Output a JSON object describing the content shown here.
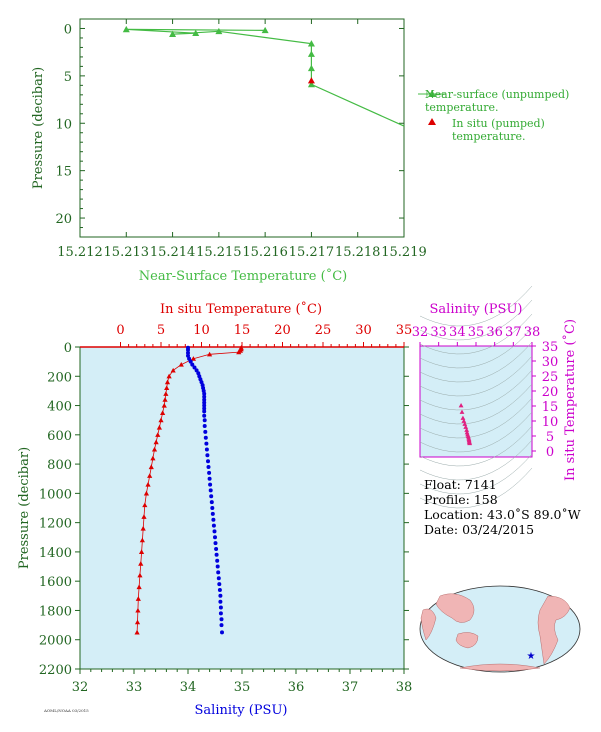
{
  "colors": {
    "near_surface": "#44bb44",
    "temperature": "#dd0000",
    "salinity": "#0000dd",
    "sal_label": "#cc00cc",
    "axes_green": "#226622",
    "bg_panel": "#d4eef7",
    "land": "#f0b5b5",
    "ocean": "#d4eef7"
  },
  "chart_data": [
    {
      "type": "line",
      "id": "near_surface",
      "xlabel": "Near-Surface Temperature (˚C)",
      "ylabel": "Pressure (decibar)",
      "xlim": [
        15.212,
        15.219
      ],
      "ylim": [
        22,
        -1
      ],
      "xticks": [
        "15.212",
        "15.213",
        "15.214",
        "15.215",
        "15.216",
        "15.217",
        "15.218",
        "15.219"
      ],
      "yticks": [
        "0",
        "5",
        "10",
        "15",
        "20"
      ],
      "series": [
        {
          "name": "Near-surface (unpumped) temperature.",
          "marker": "triangle",
          "points": [
            [
              15.216,
              0.2
            ],
            [
              15.213,
              0.1
            ],
            [
              15.2145,
              0.5
            ],
            [
              15.214,
              0.6
            ],
            [
              15.215,
              0.3
            ],
            [
              15.217,
              1.6
            ],
            [
              15.217,
              2.7
            ],
            [
              15.217,
              4.2
            ],
            [
              15.217,
              5.9
            ],
            [
              15.219,
              10.3
            ]
          ]
        },
        {
          "name": "In situ (pumped) temperature.",
          "marker": "triangle",
          "points": [
            [
              15.217,
              5.5
            ]
          ]
        }
      ],
      "legend": "right"
    },
    {
      "type": "scatter",
      "id": "profile",
      "xlabel_top": "In situ Temperature (˚C)",
      "xlabel_bottom": "Salinity (PSU)",
      "ylabel": "Pressure (decibar)",
      "temp_lim": [
        -5,
        35
      ],
      "sal_lim": [
        32,
        38
      ],
      "ylim": [
        2200,
        0
      ],
      "temp_ticks": [
        "0",
        "5",
        "10",
        "15",
        "20",
        "25",
        "30",
        "35"
      ],
      "sal_ticks": [
        "32",
        "33",
        "34",
        "35",
        "36",
        "37",
        "38"
      ],
      "yticks": [
        "0",
        "200",
        "400",
        "600",
        "800",
        "1000",
        "1200",
        "1400",
        "1600",
        "1800",
        "2000",
        "2200"
      ],
      "temperature": [
        [
          14.9,
          5
        ],
        [
          14.9,
          15
        ],
        [
          14.8,
          25
        ],
        [
          14.6,
          35
        ],
        [
          11.0,
          50
        ],
        [
          9.0,
          80
        ],
        [
          7.5,
          120
        ],
        [
          6.5,
          160
        ],
        [
          6.0,
          200
        ],
        [
          5.8,
          240
        ],
        [
          5.7,
          280
        ],
        [
          5.6,
          320
        ],
        [
          5.5,
          360
        ],
        [
          5.4,
          400
        ],
        [
          5.2,
          450
        ],
        [
          5.0,
          500
        ],
        [
          4.8,
          550
        ],
        [
          4.6,
          600
        ],
        [
          4.4,
          650
        ],
        [
          4.2,
          700
        ],
        [
          4.0,
          760
        ],
        [
          3.8,
          820
        ],
        [
          3.6,
          880
        ],
        [
          3.4,
          940
        ],
        [
          3.2,
          1000
        ],
        [
          3.0,
          1080
        ],
        [
          2.9,
          1160
        ],
        [
          2.8,
          1240
        ],
        [
          2.7,
          1320
        ],
        [
          2.6,
          1400
        ],
        [
          2.5,
          1480
        ],
        [
          2.4,
          1560
        ],
        [
          2.3,
          1640
        ],
        [
          2.2,
          1720
        ],
        [
          2.15,
          1800
        ],
        [
          2.1,
          1880
        ],
        [
          2.05,
          1950
        ]
      ],
      "salinity": [
        [
          34.0,
          5
        ],
        [
          34.0,
          20
        ],
        [
          34.0,
          40
        ],
        [
          34.0,
          60
        ],
        [
          34.02,
          80
        ],
        [
          34.05,
          100
        ],
        [
          34.08,
          120
        ],
        [
          34.12,
          140
        ],
        [
          34.16,
          160
        ],
        [
          34.19,
          180
        ],
        [
          34.21,
          200
        ],
        [
          34.23,
          220
        ],
        [
          34.25,
          240
        ],
        [
          34.27,
          260
        ],
        [
          34.28,
          280
        ],
        [
          34.29,
          300
        ],
        [
          34.3,
          320
        ],
        [
          34.3,
          340
        ],
        [
          34.3,
          360
        ],
        [
          34.3,
          380
        ],
        [
          34.3,
          400
        ],
        [
          34.3,
          420
        ],
        [
          34.3,
          440
        ],
        [
          34.3,
          470
        ],
        [
          34.31,
          500
        ],
        [
          34.31,
          540
        ],
        [
          34.32,
          580
        ],
        [
          34.33,
          620
        ],
        [
          34.34,
          660
        ],
        [
          34.35,
          700
        ],
        [
          34.36,
          740
        ],
        [
          34.37,
          780
        ],
        [
          34.38,
          820
        ],
        [
          34.39,
          860
        ],
        [
          34.4,
          900
        ],
        [
          34.41,
          940
        ],
        [
          34.42,
          980
        ],
        [
          34.43,
          1020
        ],
        [
          34.44,
          1060
        ],
        [
          34.45,
          1100
        ],
        [
          34.46,
          1140
        ],
        [
          34.47,
          1180
        ],
        [
          34.48,
          1220
        ],
        [
          34.49,
          1260
        ],
        [
          34.5,
          1300
        ],
        [
          34.51,
          1340
        ],
        [
          34.52,
          1380
        ],
        [
          34.53,
          1420
        ],
        [
          34.54,
          1460
        ],
        [
          34.55,
          1500
        ],
        [
          34.56,
          1540
        ],
        [
          34.57,
          1580
        ],
        [
          34.58,
          1620
        ],
        [
          34.59,
          1660
        ],
        [
          34.6,
          1700
        ],
        [
          34.6,
          1740
        ],
        [
          34.61,
          1780
        ],
        [
          34.61,
          1820
        ],
        [
          34.62,
          1860
        ],
        [
          34.62,
          1900
        ],
        [
          34.63,
          1950
        ]
      ]
    },
    {
      "type": "scatter",
      "id": "ts_diagram",
      "xlabel": "Salinity (PSU)",
      "ylabel": "In situ Temperature (˚C)",
      "xlim": [
        32,
        38
      ],
      "ylim": [
        -2,
        35
      ],
      "xticks": [
        "32",
        "33",
        "34",
        "35",
        "36",
        "37",
        "38"
      ],
      "yticks": [
        "0",
        "5",
        "10",
        "15",
        "20",
        "25",
        "30",
        "35"
      ],
      "points": [
        [
          34.2,
          15.2
        ],
        [
          34.25,
          13
        ],
        [
          34.3,
          11
        ],
        [
          34.35,
          10
        ],
        [
          34.4,
          9
        ],
        [
          34.45,
          8
        ],
        [
          34.5,
          7
        ],
        [
          34.52,
          6.2
        ],
        [
          34.55,
          5.5
        ],
        [
          34.58,
          5
        ],
        [
          34.6,
          4.5
        ],
        [
          34.62,
          4
        ],
        [
          34.63,
          3.6
        ],
        [
          34.64,
          3.2
        ],
        [
          34.65,
          2.9
        ],
        [
          34.66,
          2.6
        ]
      ]
    }
  ],
  "info": {
    "float": "Float:  7141",
    "profile": "Profile:  158",
    "location": "Location:  43.0˚S  89.0˚W",
    "date": "Date:  03/24/2015"
  },
  "footer_tiny": "AOML/NOAA  03/2015"
}
